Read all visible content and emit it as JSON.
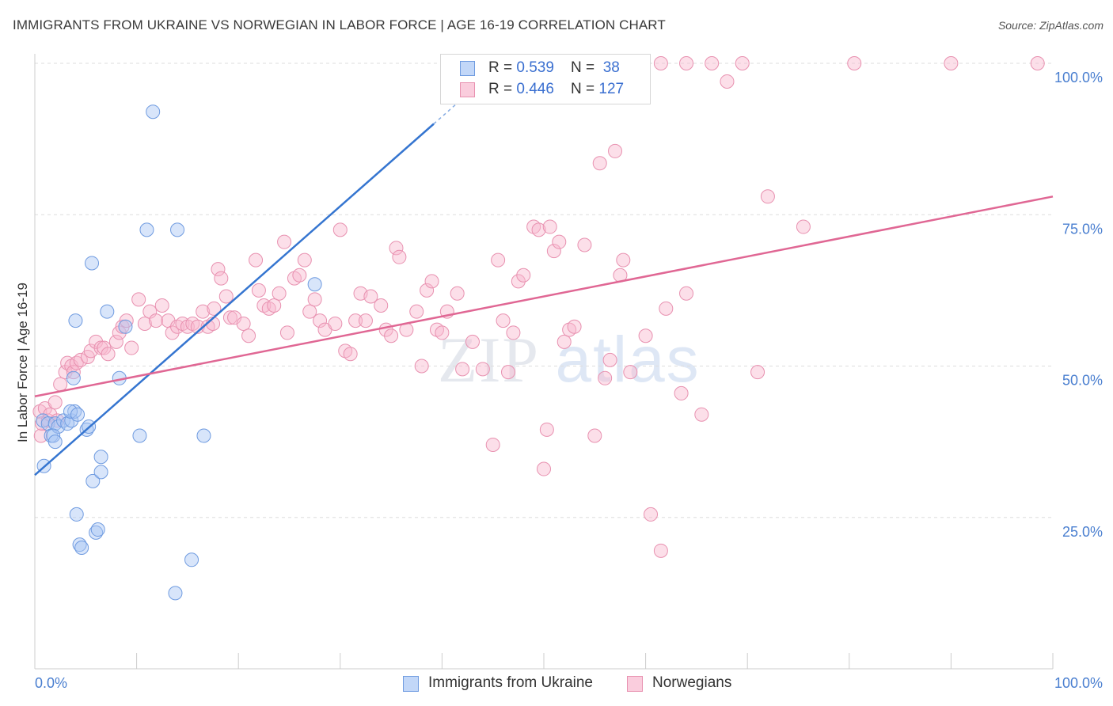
{
  "title": "IMMIGRANTS FROM UKRAINE VS NORWEGIAN IN LABOR FORCE | AGE 16-19 CORRELATION CHART",
  "source": "Source: ZipAtlas.com",
  "watermark": {
    "zip": "ZIP",
    "atlas": "atlas"
  },
  "legend": {
    "rows": [
      {
        "r_label": "R = ",
        "r_value": "0.539",
        "n_label": "N = ",
        "n_value": "38"
      },
      {
        "r_label": "R = ",
        "r_value": "0.446",
        "n_label": "N = ",
        "n_value": "127"
      }
    ]
  },
  "bottom_legend": [
    "Immigrants from Ukraine",
    "Norwegians"
  ],
  "colors": {
    "blue_fill": "rgba(168,198,245,0.45)",
    "blue_stroke": "#6f9be0",
    "blue_line": "#3575d0",
    "pink_fill": "rgba(248,184,206,0.45)",
    "pink_stroke": "#e891b0",
    "pink_line": "#e06794",
    "tick_text": "#4a7fd0",
    "grid": "#dddddd"
  },
  "chart_data": {
    "type": "scatter",
    "ylabel": "In Labor Force | Age 16-19",
    "xlabel": "",
    "xlim": [
      0,
      100
    ],
    "ylim": [
      0,
      100
    ],
    "x_tick_labels": [
      "0.0%",
      "100.0%"
    ],
    "y_ticks": [
      25,
      50,
      75,
      100
    ],
    "y_tick_labels": [
      "25.0%",
      "50.0%",
      "75.0%",
      "100.0%"
    ],
    "grid": true,
    "series": [
      {
        "name": "Immigrants from Ukraine",
        "points": [
          [
            0.8,
            41
          ],
          [
            0.9,
            33.5
          ],
          [
            1.3,
            40.5
          ],
          [
            1.6,
            38.5
          ],
          [
            2.0,
            40.5
          ],
          [
            2.3,
            40
          ],
          [
            1.8,
            38.5
          ],
          [
            2.0,
            37.5
          ],
          [
            2.8,
            41
          ],
          [
            3.2,
            40.5
          ],
          [
            3.6,
            41
          ],
          [
            3.9,
            42.5
          ],
          [
            3.5,
            42.5
          ],
          [
            4.2,
            42
          ],
          [
            3.8,
            48
          ],
          [
            4.0,
            57.5
          ],
          [
            4.1,
            25.5
          ],
          [
            4.4,
            20.5
          ],
          [
            4.6,
            20
          ],
          [
            5.1,
            39.5
          ],
          [
            5.3,
            40
          ],
          [
            5.6,
            67
          ],
          [
            5.7,
            31
          ],
          [
            6.0,
            22.5
          ],
          [
            6.2,
            23
          ],
          [
            6.5,
            35
          ],
          [
            6.5,
            32.5
          ],
          [
            7.1,
            59
          ],
          [
            8.3,
            48
          ],
          [
            8.9,
            56.5
          ],
          [
            10.3,
            38.5
          ],
          [
            11.0,
            72.5
          ],
          [
            11.6,
            92
          ],
          [
            13.8,
            12.5
          ],
          [
            14.0,
            72.5
          ],
          [
            15.4,
            18
          ],
          [
            16.6,
            38.5
          ],
          [
            27.5,
            63.5
          ]
        ]
      },
      {
        "name": "Norwegians",
        "points": [
          [
            0.5,
            42.5
          ],
          [
            0.6,
            38.5
          ],
          [
            0.7,
            40.5
          ],
          [
            1.0,
            43
          ],
          [
            1.3,
            41
          ],
          [
            1.5,
            42
          ],
          [
            2.0,
            44
          ],
          [
            2.2,
            41
          ],
          [
            2.5,
            47
          ],
          [
            3.0,
            49
          ],
          [
            3.2,
            50.5
          ],
          [
            3.6,
            50
          ],
          [
            3.8,
            49
          ],
          [
            4.1,
            50.5
          ],
          [
            4.5,
            51
          ],
          [
            5.2,
            51.5
          ],
          [
            5.5,
            52.5
          ],
          [
            6.0,
            54
          ],
          [
            6.5,
            53
          ],
          [
            6.8,
            53
          ],
          [
            7.2,
            52
          ],
          [
            8.0,
            54
          ],
          [
            8.3,
            55.5
          ],
          [
            8.6,
            56.5
          ],
          [
            9.0,
            57.5
          ],
          [
            9.5,
            53
          ],
          [
            10.2,
            61
          ],
          [
            10.8,
            57
          ],
          [
            11.3,
            59
          ],
          [
            11.9,
            57.5
          ],
          [
            12.5,
            60
          ],
          [
            13.1,
            57.5
          ],
          [
            13.5,
            55.5
          ],
          [
            14.0,
            56.5
          ],
          [
            14.5,
            57
          ],
          [
            15.0,
            56.5
          ],
          [
            15.5,
            57
          ],
          [
            16.0,
            56.5
          ],
          [
            16.5,
            59
          ],
          [
            17.0,
            56.5
          ],
          [
            17.5,
            57
          ],
          [
            17.6,
            59.5
          ],
          [
            18.0,
            66
          ],
          [
            18.3,
            64.5
          ],
          [
            18.8,
            61.5
          ],
          [
            19.2,
            58
          ],
          [
            19.6,
            58
          ],
          [
            20.5,
            57
          ],
          [
            21.0,
            55
          ],
          [
            21.7,
            67.5
          ],
          [
            22.0,
            62.5
          ],
          [
            22.5,
            60
          ],
          [
            23.0,
            59.5
          ],
          [
            23.5,
            60
          ],
          [
            24.0,
            62
          ],
          [
            24.5,
            70.5
          ],
          [
            24.8,
            55.5
          ],
          [
            25.5,
            64.5
          ],
          [
            26.0,
            65
          ],
          [
            26.5,
            67.5
          ],
          [
            27.0,
            59
          ],
          [
            27.5,
            61
          ],
          [
            28.0,
            57.5
          ],
          [
            28.5,
            56
          ],
          [
            29.5,
            57
          ],
          [
            30.0,
            72.5
          ],
          [
            30.5,
            52.5
          ],
          [
            31.0,
            52
          ],
          [
            31.5,
            57.5
          ],
          [
            32.0,
            62
          ],
          [
            32.5,
            57.5
          ],
          [
            33.0,
            61.5
          ],
          [
            34.0,
            60
          ],
          [
            34.5,
            56
          ],
          [
            35.0,
            55
          ],
          [
            35.5,
            69.5
          ],
          [
            35.8,
            68
          ],
          [
            36.5,
            56
          ],
          [
            37.5,
            59
          ],
          [
            38.0,
            50
          ],
          [
            38.5,
            62.5
          ],
          [
            39.0,
            64
          ],
          [
            39.5,
            56
          ],
          [
            40.0,
            55.5
          ],
          [
            40.5,
            59
          ],
          [
            41.5,
            62
          ],
          [
            42.0,
            49.5
          ],
          [
            43.0,
            54
          ],
          [
            44.0,
            49.5
          ],
          [
            45.0,
            37
          ],
          [
            45.5,
            67.5
          ],
          [
            46.0,
            57.5
          ],
          [
            46.5,
            49
          ],
          [
            47.0,
            55.5
          ],
          [
            47.5,
            64
          ],
          [
            48.0,
            65
          ],
          [
            49.0,
            73
          ],
          [
            49.5,
            72.5
          ],
          [
            50.0,
            33
          ],
          [
            50.3,
            39.5
          ],
          [
            50.6,
            73
          ],
          [
            51.0,
            69
          ],
          [
            51.5,
            70.5
          ],
          [
            52.0,
            54
          ],
          [
            52.5,
            56
          ],
          [
            53.0,
            56.5
          ],
          [
            54.0,
            70
          ],
          [
            55.0,
            38.5
          ],
          [
            55.5,
            83.5
          ],
          [
            56.0,
            48
          ],
          [
            56.5,
            51
          ],
          [
            57.0,
            85.5
          ],
          [
            57.5,
            65
          ],
          [
            57.8,
            67.5
          ],
          [
            58.5,
            49
          ],
          [
            60.0,
            55
          ],
          [
            60.5,
            25.5
          ],
          [
            61.5,
            19.5
          ],
          [
            62.0,
            59.5
          ],
          [
            63.5,
            45.5
          ],
          [
            64.0,
            62
          ],
          [
            65.5,
            42
          ],
          [
            68.0,
            97
          ],
          [
            69.5,
            100
          ],
          [
            71.0,
            49
          ],
          [
            72.0,
            78
          ],
          [
            75.5,
            73
          ],
          [
            80.5,
            100
          ],
          [
            90.0,
            100
          ],
          [
            98.5,
            100
          ],
          [
            61.5,
            100
          ],
          [
            64.0,
            100
          ],
          [
            66.5,
            100
          ]
        ]
      }
    ],
    "trend_lines": [
      {
        "series": "Immigrants from Ukraine",
        "x": [
          0,
          100
        ],
        "y": [
          32,
          180
        ]
      },
      {
        "series": "Norwegians",
        "x": [
          0,
          100
        ],
        "y": [
          45,
          78
        ]
      }
    ]
  }
}
